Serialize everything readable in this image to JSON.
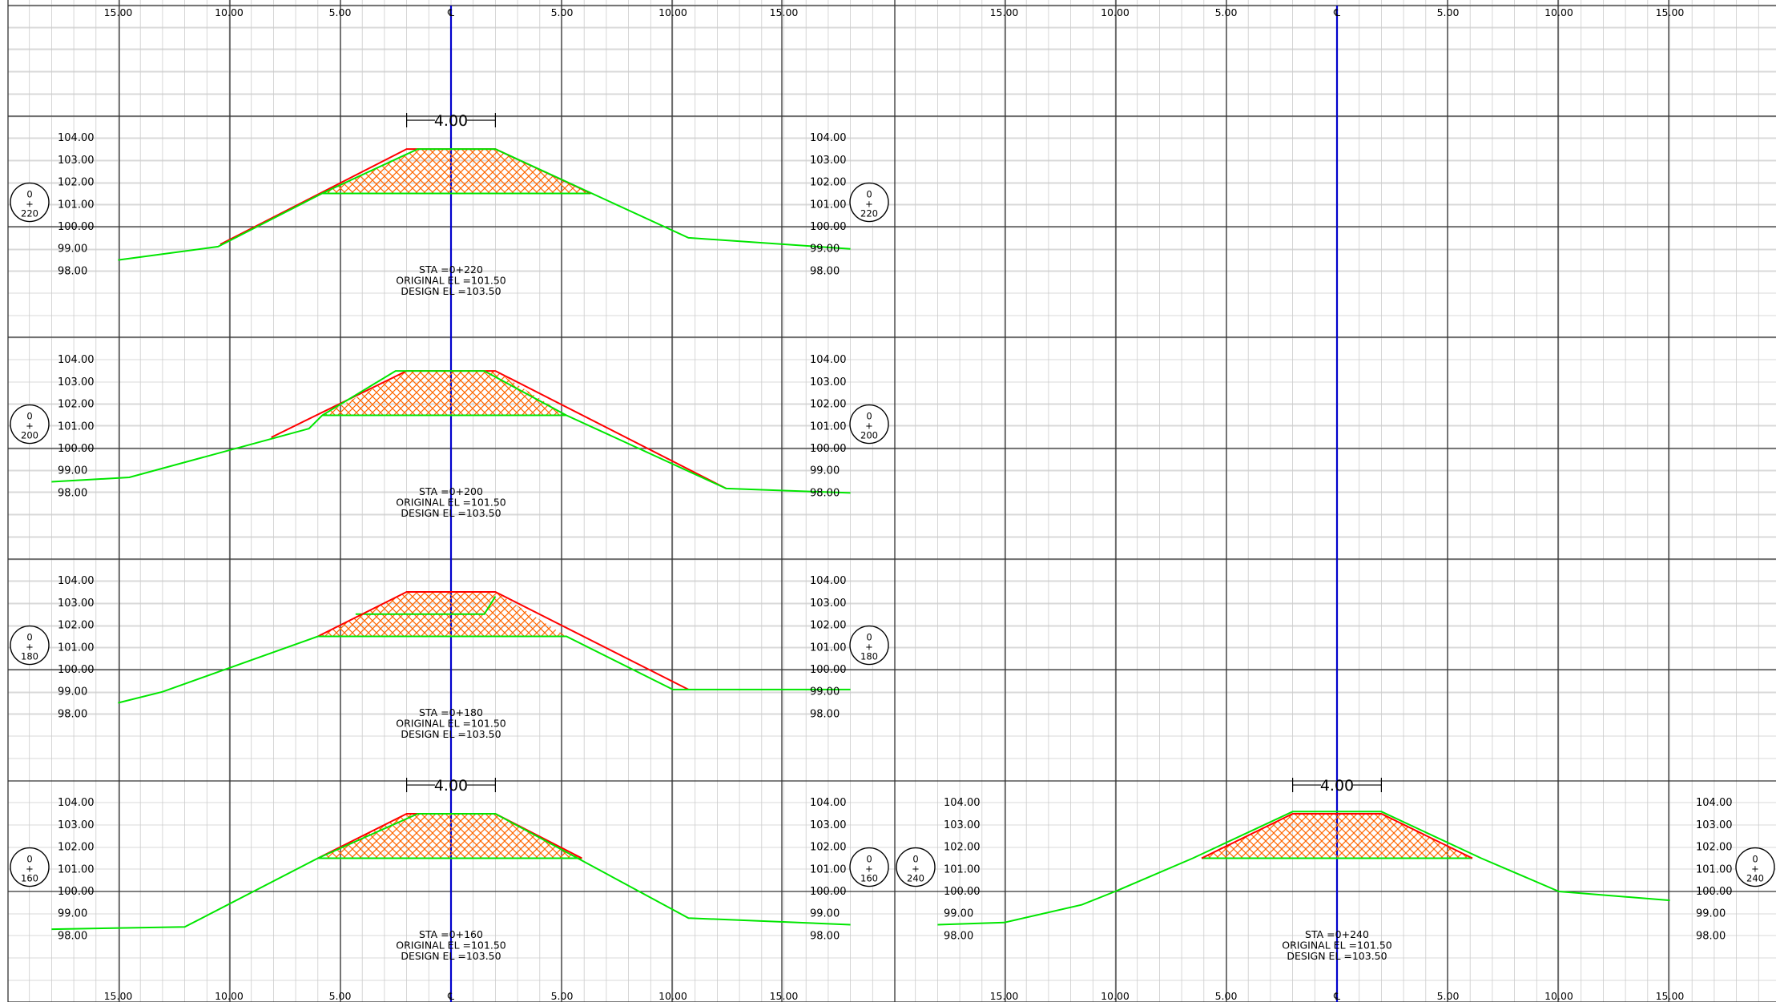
{
  "chart_data": {
    "type": "diagram",
    "colors": {
      "grid_minor": "#cccccc",
      "grid_major": "#333333",
      "centerline": "#0000cc",
      "original_ground": "#00e600",
      "design_section": "#ff0000",
      "fill_hatch": "#ff6600"
    },
    "offset_scale_labels": [
      "15.00",
      "10.00",
      "5.00",
      "℄",
      "5.00",
      "10.00",
      "15.00"
    ],
    "elevation_labels": [
      "104.00",
      "103.00",
      "102.00",
      "101.00",
      "100.00",
      "99.00",
      "98.00"
    ],
    "sections": [
      {
        "station": "0+220",
        "bubble": {
          "top": "0",
          "mid": "+",
          "bottom": "220"
        },
        "info": [
          "STA =0+220",
          "ORIGINAL EL =101.50",
          "DESIGN EL =103.50"
        ],
        "top_width_label": "4.00",
        "design": [
          [
            -10.4,
            99.2
          ],
          [
            -2.0,
            103.5
          ],
          [
            2.0,
            103.5
          ],
          [
            6.3,
            101.5
          ]
        ],
        "original": [
          [
            -15.0,
            98.5
          ],
          [
            -10.5,
            99.1
          ],
          [
            -5.8,
            101.5
          ],
          [
            -1.5,
            103.5
          ],
          [
            2.0,
            103.5
          ],
          [
            10.7,
            99.5
          ],
          [
            18.0,
            99.0
          ]
        ],
        "fill": [
          [
            -5.8,
            101.5
          ],
          [
            -1.5,
            103.5
          ],
          [
            2.0,
            103.5
          ],
          [
            6.3,
            101.5
          ]
        ]
      },
      {
        "station": "0+200",
        "bubble": {
          "top": "0",
          "mid": "+",
          "bottom": "200"
        },
        "info": [
          "STA =0+200",
          "ORIGINAL EL =101.50",
          "DESIGN EL =103.50"
        ],
        "top_width_label": "",
        "design": [
          [
            -8.1,
            100.5
          ],
          [
            -2.0,
            103.5
          ],
          [
            2.0,
            103.5
          ],
          [
            12.4,
            98.2
          ]
        ],
        "original": [
          [
            -18.0,
            98.5
          ],
          [
            -14.5,
            98.7
          ],
          [
            -6.4,
            100.9
          ],
          [
            -5.8,
            101.5
          ],
          [
            -2.5,
            103.5
          ],
          [
            1.5,
            103.5
          ],
          [
            5.2,
            101.5
          ],
          [
            12.4,
            98.2
          ],
          [
            18.0,
            98.0
          ]
        ],
        "fill": [
          [
            -5.8,
            101.5
          ],
          [
            -2.0,
            103.5
          ],
          [
            2.0,
            103.5
          ],
          [
            5.2,
            101.5
          ]
        ]
      },
      {
        "station": "0+180",
        "bubble": {
          "top": "0",
          "mid": "+",
          "bottom": "180"
        },
        "info": [
          "STA =0+180",
          "ORIGINAL EL =101.50",
          "DESIGN EL =103.50"
        ],
        "top_width_label": "",
        "design": [
          [
            -6.0,
            101.5
          ],
          [
            -2.0,
            103.5
          ],
          [
            2.0,
            103.5
          ],
          [
            10.7,
            99.1
          ]
        ],
        "original": [
          [
            -15.0,
            98.5
          ],
          [
            -13.0,
            99.0
          ],
          [
            -6.0,
            101.5
          ],
          [
            5.2,
            101.5
          ],
          [
            10.0,
            99.1
          ],
          [
            18.0,
            99.1
          ]
        ],
        "fill": [
          [
            -6.0,
            101.5
          ],
          [
            -2.0,
            103.5
          ],
          [
            2.0,
            103.5
          ],
          [
            5.2,
            101.5
          ]
        ],
        "inner_bench": [
          [
            -4.3,
            102.5
          ],
          [
            1.5,
            102.5
          ],
          [
            2.0,
            103.3
          ]
        ]
      },
      {
        "station": "0+160",
        "bubble": {
          "top": "0",
          "mid": "+",
          "bottom": "160"
        },
        "info": [
          "STA =0+160",
          "ORIGINAL EL =101.50",
          "DESIGN EL =103.50"
        ],
        "top_width_label": "4.00",
        "design": [
          [
            -6.0,
            101.5
          ],
          [
            -2.0,
            103.5
          ],
          [
            2.0,
            103.5
          ],
          [
            5.9,
            101.5
          ]
        ],
        "original": [
          [
            -18.0,
            98.3
          ],
          [
            -12.0,
            98.4
          ],
          [
            -6.0,
            101.5
          ],
          [
            -1.5,
            103.5
          ],
          [
            2.0,
            103.5
          ],
          [
            10.7,
            98.8
          ],
          [
            18.0,
            98.5
          ]
        ],
        "fill": [
          [
            -6.0,
            101.5
          ],
          [
            -2.0,
            103.5
          ],
          [
            2.0,
            103.5
          ],
          [
            5.9,
            101.5
          ]
        ]
      },
      {
        "station": "0+240",
        "bubble": {
          "top": "0",
          "mid": "+",
          "bottom": "240"
        },
        "info": [
          "STA =0+240",
          "ORIGINAL EL =101.50",
          "DESIGN EL =103.50"
        ],
        "top_width_label": "4.00",
        "design": [
          [
            -6.1,
            101.5
          ],
          [
            -2.0,
            103.5
          ],
          [
            2.0,
            103.5
          ],
          [
            6.1,
            101.5
          ]
        ],
        "original": [
          [
            -18.0,
            98.5
          ],
          [
            -15.0,
            98.6
          ],
          [
            -11.5,
            99.4
          ],
          [
            -10.0,
            100.0
          ],
          [
            -6.5,
            101.5
          ],
          [
            -2.0,
            103.6
          ],
          [
            2.0,
            103.6
          ],
          [
            6.5,
            101.5
          ],
          [
            10.0,
            100.0
          ],
          [
            15.0,
            99.6
          ]
        ],
        "fill": [
          [
            -6.1,
            101.5
          ],
          [
            -2.0,
            103.5
          ],
          [
            2.0,
            103.5
          ],
          [
            6.1,
            101.5
          ]
        ]
      }
    ]
  }
}
